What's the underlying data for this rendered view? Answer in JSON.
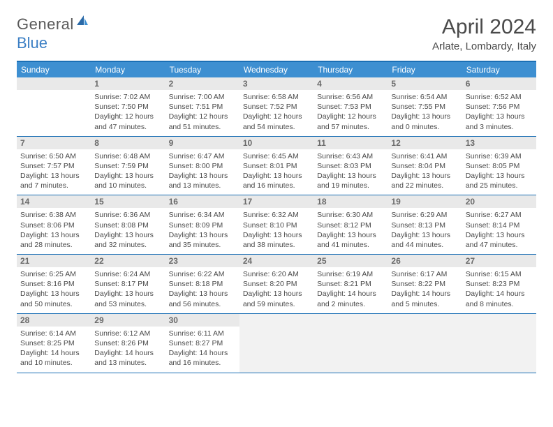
{
  "header": {
    "logo_general": "General",
    "logo_blue": "Blue",
    "month_title": "April 2024",
    "location": "Arlate, Lombardy, Italy"
  },
  "colors": {
    "brand_blue": "#3d8fd1",
    "rule_blue": "#1a6fb5",
    "header_gray": "#e9e9e9",
    "trailing_gray": "#f2f2f2",
    "text": "#4a4a4a"
  },
  "weekdays": [
    "Sunday",
    "Monday",
    "Tuesday",
    "Wednesday",
    "Thursday",
    "Friday",
    "Saturday"
  ],
  "weeks": [
    [
      null,
      {
        "n": "1",
        "sr": "7:02 AM",
        "ss": "7:50 PM",
        "dl": "12 hours and 47 minutes."
      },
      {
        "n": "2",
        "sr": "7:00 AM",
        "ss": "7:51 PM",
        "dl": "12 hours and 51 minutes."
      },
      {
        "n": "3",
        "sr": "6:58 AM",
        "ss": "7:52 PM",
        "dl": "12 hours and 54 minutes."
      },
      {
        "n": "4",
        "sr": "6:56 AM",
        "ss": "7:53 PM",
        "dl": "12 hours and 57 minutes."
      },
      {
        "n": "5",
        "sr": "6:54 AM",
        "ss": "7:55 PM",
        "dl": "13 hours and 0 minutes."
      },
      {
        "n": "6",
        "sr": "6:52 AM",
        "ss": "7:56 PM",
        "dl": "13 hours and 3 minutes."
      }
    ],
    [
      {
        "n": "7",
        "sr": "6:50 AM",
        "ss": "7:57 PM",
        "dl": "13 hours and 7 minutes."
      },
      {
        "n": "8",
        "sr": "6:48 AM",
        "ss": "7:59 PM",
        "dl": "13 hours and 10 minutes."
      },
      {
        "n": "9",
        "sr": "6:47 AM",
        "ss": "8:00 PM",
        "dl": "13 hours and 13 minutes."
      },
      {
        "n": "10",
        "sr": "6:45 AM",
        "ss": "8:01 PM",
        "dl": "13 hours and 16 minutes."
      },
      {
        "n": "11",
        "sr": "6:43 AM",
        "ss": "8:03 PM",
        "dl": "13 hours and 19 minutes."
      },
      {
        "n": "12",
        "sr": "6:41 AM",
        "ss": "8:04 PM",
        "dl": "13 hours and 22 minutes."
      },
      {
        "n": "13",
        "sr": "6:39 AM",
        "ss": "8:05 PM",
        "dl": "13 hours and 25 minutes."
      }
    ],
    [
      {
        "n": "14",
        "sr": "6:38 AM",
        "ss": "8:06 PM",
        "dl": "13 hours and 28 minutes."
      },
      {
        "n": "15",
        "sr": "6:36 AM",
        "ss": "8:08 PM",
        "dl": "13 hours and 32 minutes."
      },
      {
        "n": "16",
        "sr": "6:34 AM",
        "ss": "8:09 PM",
        "dl": "13 hours and 35 minutes."
      },
      {
        "n": "17",
        "sr": "6:32 AM",
        "ss": "8:10 PM",
        "dl": "13 hours and 38 minutes."
      },
      {
        "n": "18",
        "sr": "6:30 AM",
        "ss": "8:12 PM",
        "dl": "13 hours and 41 minutes."
      },
      {
        "n": "19",
        "sr": "6:29 AM",
        "ss": "8:13 PM",
        "dl": "13 hours and 44 minutes."
      },
      {
        "n": "20",
        "sr": "6:27 AM",
        "ss": "8:14 PM",
        "dl": "13 hours and 47 minutes."
      }
    ],
    [
      {
        "n": "21",
        "sr": "6:25 AM",
        "ss": "8:16 PM",
        "dl": "13 hours and 50 minutes."
      },
      {
        "n": "22",
        "sr": "6:24 AM",
        "ss": "8:17 PM",
        "dl": "13 hours and 53 minutes."
      },
      {
        "n": "23",
        "sr": "6:22 AM",
        "ss": "8:18 PM",
        "dl": "13 hours and 56 minutes."
      },
      {
        "n": "24",
        "sr": "6:20 AM",
        "ss": "8:20 PM",
        "dl": "13 hours and 59 minutes."
      },
      {
        "n": "25",
        "sr": "6:19 AM",
        "ss": "8:21 PM",
        "dl": "14 hours and 2 minutes."
      },
      {
        "n": "26",
        "sr": "6:17 AM",
        "ss": "8:22 PM",
        "dl": "14 hours and 5 minutes."
      },
      {
        "n": "27",
        "sr": "6:15 AM",
        "ss": "8:23 PM",
        "dl": "14 hours and 8 minutes."
      }
    ],
    [
      {
        "n": "28",
        "sr": "6:14 AM",
        "ss": "8:25 PM",
        "dl": "14 hours and 10 minutes."
      },
      {
        "n": "29",
        "sr": "6:12 AM",
        "ss": "8:26 PM",
        "dl": "14 hours and 13 minutes."
      },
      {
        "n": "30",
        "sr": "6:11 AM",
        "ss": "8:27 PM",
        "dl": "14 hours and 16 minutes."
      },
      {
        "trailing": true
      },
      {
        "trailing": true
      },
      {
        "trailing": true
      },
      {
        "trailing": true
      }
    ]
  ],
  "labels": {
    "sunrise": "Sunrise: ",
    "sunset": "Sunset: ",
    "daylight": "Daylight: "
  }
}
